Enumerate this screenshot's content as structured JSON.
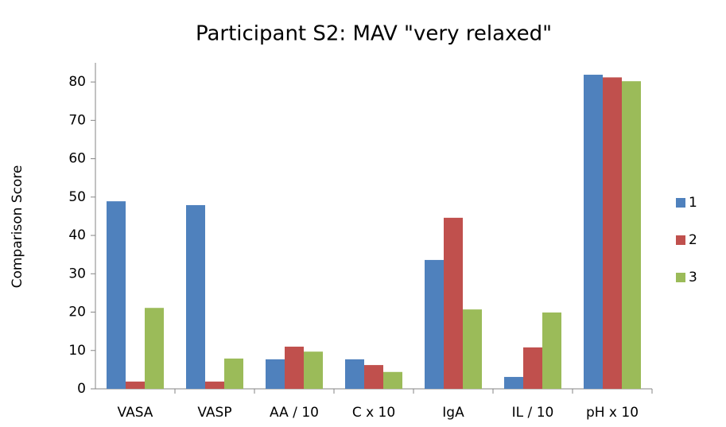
{
  "chart_data": {
    "type": "bar",
    "title": "Participant S2: MAV \"very relaxed\"",
    "y_label": "Comparison Score",
    "categories": [
      "VASA",
      "VASP",
      "AA / 10",
      "C x 10",
      "IgA",
      "IL / 10",
      "pH x 10"
    ],
    "series": [
      {
        "name": "1",
        "color": "#4f81bd",
        "values": [
          48.9,
          47.9,
          7.7,
          7.7,
          33.6,
          3.1,
          81.9
        ]
      },
      {
        "name": "2",
        "color": "#c0504d",
        "values": [
          1.9,
          1.9,
          11,
          6.2,
          44.6,
          10.8,
          81.2
        ]
      },
      {
        "name": "3",
        "color": "#9bbb59",
        "values": [
          21.1,
          7.9,
          9.7,
          4.4,
          20.7,
          19.9,
          80.2
        ]
      }
    ],
    "ylim": [
      0,
      85
    ],
    "yticks": [
      0,
      10,
      20,
      30,
      40,
      50,
      60,
      70,
      80
    ],
    "grid": false,
    "legend": "right"
  }
}
